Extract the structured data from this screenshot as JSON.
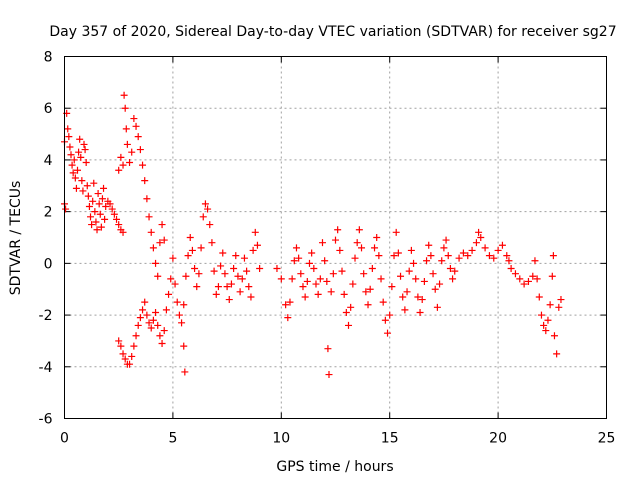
{
  "chart_data": {
    "type": "scatter",
    "title": "Day 357 of 2020, Sidereal Day-to-day VTEC variation (SDTVAR) for receiver sg27",
    "xlabel": "GPS time / hours",
    "ylabel": "SDTVAR / TECUs",
    "xlim": [
      0,
      25
    ],
    "ylim": [
      -6,
      8
    ],
    "xticks": [
      0,
      5,
      10,
      15,
      20,
      25
    ],
    "yticks": [
      -6,
      -4,
      -2,
      0,
      2,
      4,
      6,
      8
    ],
    "grid": true,
    "marker": "+",
    "color": "#ff0000",
    "series": [
      {
        "name": "SDTVAR",
        "description_points": [
          [
            0.0,
            2.3
          ],
          [
            0.0,
            4.7
          ],
          [
            0.05,
            2.1
          ],
          [
            0.1,
            5.8
          ],
          [
            0.15,
            5.2
          ],
          [
            0.2,
            4.9
          ],
          [
            0.25,
            4.5
          ],
          [
            0.3,
            4.2
          ],
          [
            0.35,
            3.8
          ],
          [
            0.4,
            3.5
          ],
          [
            0.45,
            4.0
          ],
          [
            0.5,
            3.3
          ],
          [
            0.55,
            2.9
          ],
          [
            0.6,
            3.6
          ],
          [
            0.65,
            4.3
          ],
          [
            0.7,
            4.8
          ],
          [
            0.75,
            4.1
          ],
          [
            0.8,
            3.2
          ],
          [
            0.85,
            2.8
          ],
          [
            0.9,
            4.6
          ],
          [
            0.95,
            4.4
          ],
          [
            1.0,
            3.9
          ],
          [
            1.05,
            3.0
          ],
          [
            1.1,
            2.6
          ],
          [
            1.15,
            2.2
          ],
          [
            1.2,
            1.8
          ],
          [
            1.25,
            1.5
          ],
          [
            1.3,
            2.4
          ],
          [
            1.35,
            3.1
          ],
          [
            1.4,
            2.0
          ],
          [
            1.45,
            1.6
          ],
          [
            1.5,
            1.3
          ],
          [
            1.55,
            2.7
          ],
          [
            1.6,
            2.3
          ],
          [
            1.65,
            1.9
          ],
          [
            1.7,
            1.4
          ],
          [
            1.75,
            2.5
          ],
          [
            1.8,
            2.9
          ],
          [
            1.85,
            1.7
          ],
          [
            1.9,
            2.2
          ],
          [
            2.0,
            2.4
          ],
          [
            2.1,
            2.3
          ],
          [
            2.2,
            2.1
          ],
          [
            2.3,
            1.9
          ],
          [
            2.4,
            1.7
          ],
          [
            2.5,
            1.5
          ],
          [
            2.6,
            1.3
          ],
          [
            2.7,
            1.2
          ],
          [
            2.5,
            3.6
          ],
          [
            2.6,
            4.1
          ],
          [
            2.7,
            3.8
          ],
          [
            2.75,
            6.5
          ],
          [
            2.8,
            6.0
          ],
          [
            2.85,
            5.2
          ],
          [
            2.9,
            4.6
          ],
          [
            3.0,
            3.9
          ],
          [
            3.1,
            4.3
          ],
          [
            3.2,
            5.6
          ],
          [
            3.3,
            5.3
          ],
          [
            3.4,
            4.9
          ],
          [
            3.5,
            4.4
          ],
          [
            3.6,
            3.8
          ],
          [
            3.7,
            3.2
          ],
          [
            3.8,
            2.5
          ],
          [
            3.9,
            1.8
          ],
          [
            4.0,
            1.2
          ],
          [
            4.1,
            0.6
          ],
          [
            4.2,
            0.0
          ],
          [
            4.3,
            -0.5
          ],
          [
            4.4,
            0.8
          ],
          [
            4.5,
            1.5
          ],
          [
            4.6,
            0.9
          ],
          [
            2.5,
            -3.0
          ],
          [
            2.6,
            -3.2
          ],
          [
            2.7,
            -3.5
          ],
          [
            2.8,
            -3.7
          ],
          [
            2.9,
            -3.9
          ],
          [
            3.0,
            -3.9
          ],
          [
            3.1,
            -3.6
          ],
          [
            3.2,
            -3.2
          ],
          [
            3.3,
            -2.8
          ],
          [
            3.4,
            -2.4
          ],
          [
            3.5,
            -2.1
          ],
          [
            3.6,
            -1.8
          ],
          [
            3.7,
            -1.5
          ],
          [
            3.8,
            -2.0
          ],
          [
            3.9,
            -2.3
          ],
          [
            4.0,
            -2.5
          ],
          [
            4.1,
            -2.2
          ],
          [
            4.2,
            -1.9
          ],
          [
            4.3,
            -2.4
          ],
          [
            4.4,
            -2.8
          ],
          [
            4.5,
            -3.1
          ],
          [
            4.6,
            -2.6
          ],
          [
            4.7,
            -1.8
          ],
          [
            4.8,
            -1.2
          ],
          [
            4.9,
            -0.6
          ],
          [
            5.0,
            0.2
          ],
          [
            5.1,
            -0.8
          ],
          [
            5.2,
            -1.5
          ],
          [
            5.3,
            -2.0
          ],
          [
            5.4,
            -2.3
          ],
          [
            5.5,
            -1.6
          ],
          [
            5.5,
            -3.2
          ],
          [
            5.55,
            -4.2
          ],
          [
            5.6,
            -0.5
          ],
          [
            5.7,
            0.3
          ],
          [
            5.8,
            1.0
          ],
          [
            5.9,
            0.5
          ],
          [
            6.0,
            -0.2
          ],
          [
            6.1,
            -0.9
          ],
          [
            6.2,
            -0.4
          ],
          [
            6.3,
            0.6
          ],
          [
            6.4,
            1.8
          ],
          [
            6.5,
            2.3
          ],
          [
            6.6,
            2.1
          ],
          [
            6.7,
            1.5
          ],
          [
            6.8,
            0.8
          ],
          [
            6.9,
            -0.3
          ],
          [
            7.0,
            -1.2
          ],
          [
            7.1,
            -0.9
          ],
          [
            7.2,
            -0.1
          ],
          [
            7.3,
            0.4
          ],
          [
            7.4,
            -0.4
          ],
          [
            7.5,
            -0.9
          ],
          [
            7.6,
            -1.4
          ],
          [
            7.7,
            -0.8
          ],
          [
            7.8,
            -0.2
          ],
          [
            7.9,
            0.3
          ],
          [
            8.0,
            -0.5
          ],
          [
            8.1,
            -1.1
          ],
          [
            8.2,
            -0.6
          ],
          [
            8.3,
            0.2
          ],
          [
            8.4,
            -0.3
          ],
          [
            8.5,
            -0.9
          ],
          [
            8.6,
            -1.3
          ],
          [
            8.7,
            0.5
          ],
          [
            8.8,
            1.2
          ],
          [
            8.9,
            0.7
          ],
          [
            9.0,
            -0.2
          ],
          [
            9.8,
            -0.2
          ],
          [
            10.0,
            -0.6
          ],
          [
            10.2,
            -1.6
          ],
          [
            10.3,
            -2.1
          ],
          [
            10.4,
            -1.5
          ],
          [
            10.5,
            -0.6
          ],
          [
            10.6,
            0.1
          ],
          [
            10.7,
            0.6
          ],
          [
            10.8,
            0.2
          ],
          [
            10.9,
            -0.4
          ],
          [
            11.0,
            -0.9
          ],
          [
            11.1,
            -1.3
          ],
          [
            11.2,
            -0.7
          ],
          [
            11.3,
            0.0
          ],
          [
            11.4,
            0.4
          ],
          [
            11.5,
            -0.2
          ],
          [
            11.6,
            -0.8
          ],
          [
            11.7,
            -1.2
          ],
          [
            11.8,
            -0.6
          ],
          [
            11.9,
            0.8
          ],
          [
            12.0,
            0.1
          ],
          [
            12.1,
            -0.7
          ],
          [
            12.15,
            -3.3
          ],
          [
            12.2,
            -4.3
          ],
          [
            12.3,
            -1.1
          ],
          [
            12.4,
            -0.4
          ],
          [
            12.5,
            0.9
          ],
          [
            12.6,
            1.3
          ],
          [
            12.7,
            0.5
          ],
          [
            12.8,
            -0.3
          ],
          [
            12.9,
            -1.2
          ],
          [
            13.0,
            -1.9
          ],
          [
            13.1,
            -2.4
          ],
          [
            13.2,
            -1.7
          ],
          [
            13.3,
            -0.8
          ],
          [
            13.4,
            0.2
          ],
          [
            13.5,
            0.8
          ],
          [
            13.6,
            1.3
          ],
          [
            13.7,
            0.6
          ],
          [
            13.8,
            -0.4
          ],
          [
            13.9,
            -1.1
          ],
          [
            14.0,
            -1.6
          ],
          [
            14.1,
            -1.0
          ],
          [
            14.2,
            -0.2
          ],
          [
            14.3,
            0.6
          ],
          [
            14.4,
            1.0
          ],
          [
            14.5,
            0.3
          ],
          [
            14.6,
            -0.6
          ],
          [
            14.7,
            -1.5
          ],
          [
            14.8,
            -2.2
          ],
          [
            14.9,
            -2.7
          ],
          [
            15.0,
            -2.0
          ],
          [
            15.1,
            -0.9
          ],
          [
            15.2,
            0.3
          ],
          [
            15.3,
            1.2
          ],
          [
            15.4,
            0.4
          ],
          [
            15.5,
            -0.5
          ],
          [
            15.6,
            -1.3
          ],
          [
            15.7,
            -1.8
          ],
          [
            15.8,
            -1.1
          ],
          [
            15.9,
            -0.3
          ],
          [
            16.0,
            0.5
          ],
          [
            16.1,
            0.0
          ],
          [
            16.2,
            -0.6
          ],
          [
            16.3,
            -1.3
          ],
          [
            16.4,
            -1.9
          ],
          [
            16.5,
            -1.4
          ],
          [
            16.6,
            -0.7
          ],
          [
            16.7,
            0.1
          ],
          [
            16.8,
            0.7
          ],
          [
            16.9,
            0.3
          ],
          [
            17.0,
            -0.4
          ],
          [
            17.1,
            -1.0
          ],
          [
            17.2,
            -1.7
          ],
          [
            17.3,
            -0.8
          ],
          [
            17.4,
            0.1
          ],
          [
            17.5,
            0.6
          ],
          [
            17.6,
            0.9
          ],
          [
            17.7,
            0.3
          ],
          [
            17.8,
            -0.2
          ],
          [
            17.9,
            -0.6
          ],
          [
            18.0,
            -0.3
          ],
          [
            18.2,
            0.2
          ],
          [
            18.4,
            0.4
          ],
          [
            18.6,
            0.3
          ],
          [
            18.8,
            0.5
          ],
          [
            19.0,
            0.8
          ],
          [
            19.1,
            1.2
          ],
          [
            19.2,
            1.0
          ],
          [
            19.4,
            0.6
          ],
          [
            19.6,
            0.3
          ],
          [
            19.8,
            0.2
          ],
          [
            20.0,
            0.5
          ],
          [
            20.2,
            0.7
          ],
          [
            20.4,
            0.3
          ],
          [
            20.5,
            0.1
          ],
          [
            20.6,
            -0.2
          ],
          [
            20.8,
            -0.4
          ],
          [
            21.0,
            -0.6
          ],
          [
            21.2,
            -0.8
          ],
          [
            21.4,
            -0.7
          ],
          [
            21.6,
            -0.5
          ],
          [
            21.7,
            0.1
          ],
          [
            21.8,
            -0.6
          ],
          [
            21.9,
            -1.3
          ],
          [
            22.0,
            -2.0
          ],
          [
            22.1,
            -2.4
          ],
          [
            22.2,
            -2.6
          ],
          [
            22.3,
            -2.2
          ],
          [
            22.4,
            -1.6
          ],
          [
            22.5,
            -0.5
          ],
          [
            22.55,
            0.3
          ],
          [
            22.6,
            -2.8
          ],
          [
            22.7,
            -3.5
          ],
          [
            22.8,
            -1.7
          ],
          [
            22.9,
            -1.4
          ]
        ]
      }
    ]
  }
}
